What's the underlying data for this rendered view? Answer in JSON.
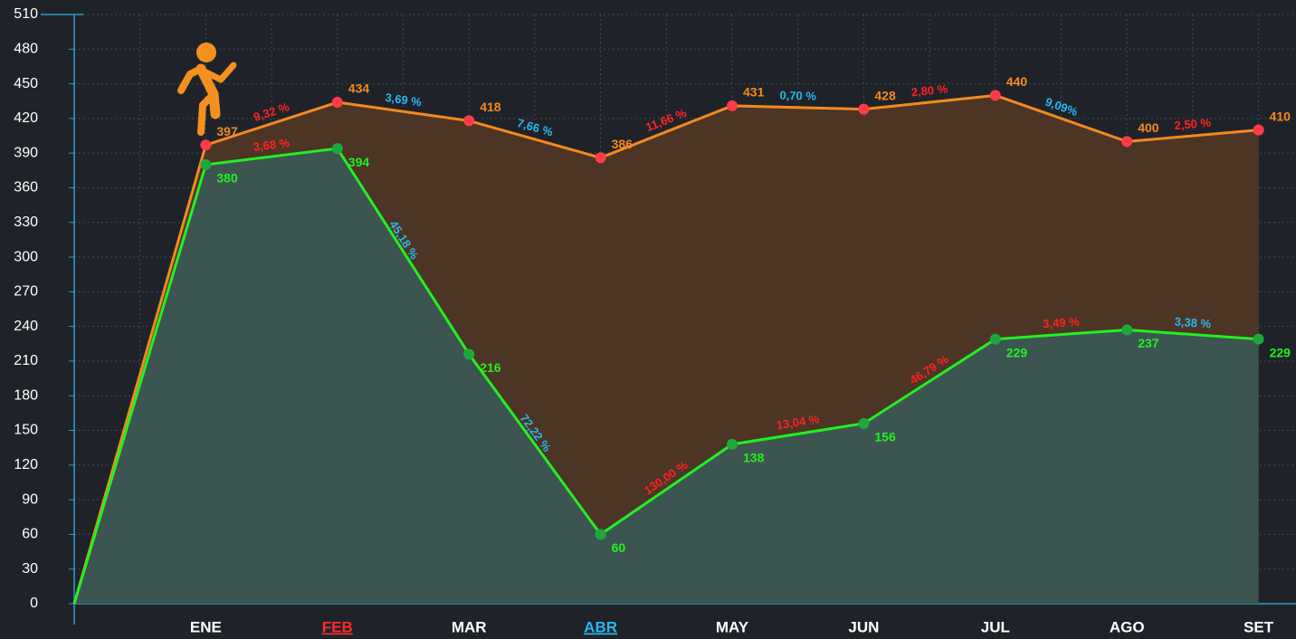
{
  "chart_data": {
    "type": "line",
    "categories": [
      null,
      "ENE",
      "FEB",
      "MAR",
      "ABR",
      "MAY",
      "JUN",
      "JUL",
      "AGO",
      "SET"
    ],
    "category_colors": [
      null,
      "#ffffff",
      "#ff2a2a",
      "#ffffff",
      "#29b6f0",
      "#ffffff",
      "#ffffff",
      "#ffffff",
      "#ffffff",
      "#ffffff"
    ],
    "series": [
      {
        "color": "#f5891e",
        "point_color": "#ff3b4a",
        "area_color": "#4c3524",
        "values": [
          0,
          397,
          434,
          418,
          386,
          431,
          428,
          440,
          400,
          410
        ],
        "change_labels": [
          "9,32 %",
          "3,69 %",
          "7,66 %",
          "11,66 %",
          "0,70 %",
          "2,80 %",
          "9,09%",
          "2,50 %"
        ]
      },
      {
        "color": "#22f022",
        "point_color": "#1ea83c",
        "area_color": "#3d5550",
        "values": [
          0,
          380,
          394,
          216,
          60,
          138,
          156,
          229,
          237,
          229
        ],
        "change_labels": [
          "3,68 %",
          "45,18 %",
          "72,22 %",
          "130,00 %",
          "13,04 %",
          "46,79 %",
          "3,49 %",
          "3,38 %"
        ]
      }
    ],
    "increase_color": "#ff2222",
    "decrease_color": "#29b6f0",
    "ylim": [
      0,
      510
    ],
    "yticks": [
      0,
      30,
      60,
      90,
      120,
      150,
      180,
      210,
      240,
      270,
      300,
      330,
      360,
      390,
      420,
      450,
      480,
      510
    ],
    "grid": true
  }
}
